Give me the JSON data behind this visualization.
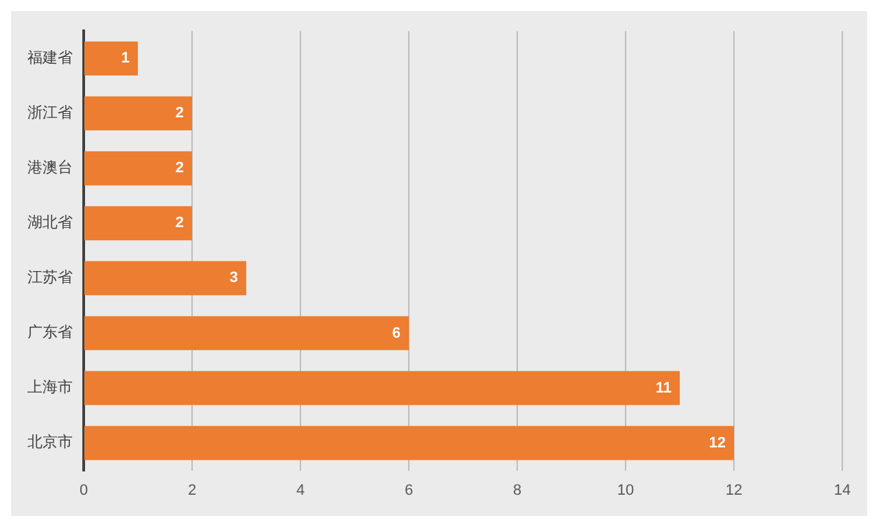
{
  "chart_data": {
    "type": "bar",
    "orientation": "horizontal",
    "categories": [
      "福建省",
      "浙江省",
      "港澳台",
      "湖北省",
      "江苏省",
      "广东省",
      "上海市",
      "北京市"
    ],
    "values": [
      1,
      2,
      2,
      2,
      3,
      6,
      11,
      12
    ],
    "color": "#ed7d31",
    "xlim": [
      0,
      14
    ],
    "xticks": [
      0,
      2,
      4,
      6,
      8,
      10,
      12,
      14
    ],
    "grid": "x",
    "legend": false,
    "data_labels": true
  }
}
